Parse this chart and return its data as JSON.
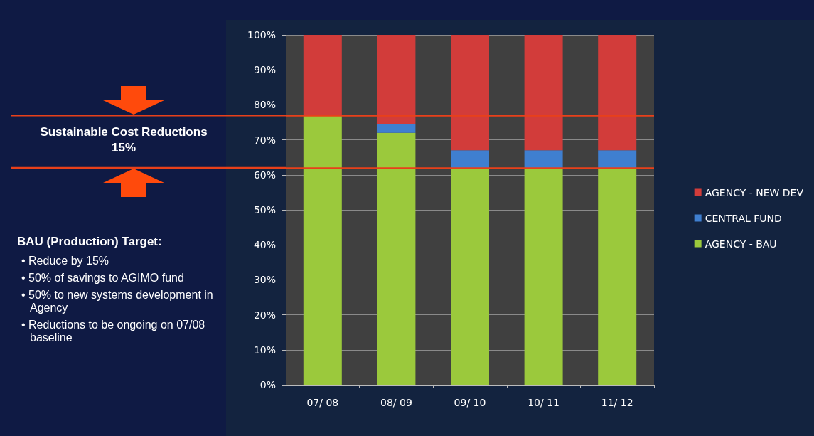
{
  "chart_data": {
    "type": "bar",
    "stacked": true,
    "categories": [
      "07/ 08",
      "08/ 09",
      "09/ 10",
      "10/ 11",
      "11/ 12"
    ],
    "series": [
      {
        "name": "AGENCY - BAU",
        "color": "#9bc93c",
        "values": [
          77,
          72,
          62,
          62,
          62
        ]
      },
      {
        "name": "CENTRAL FUND",
        "color": "#3f7fd0",
        "values": [
          0,
          2.5,
          5,
          5,
          5
        ]
      },
      {
        "name": "AGENCY - NEW DEV",
        "color": "#d23c3a",
        "values": [
          23,
          25.5,
          33,
          33,
          33
        ]
      }
    ],
    "ylim": [
      0,
      100
    ],
    "yticks": [
      {
        "value": 0,
        "label": "0%"
      },
      {
        "value": 10,
        "label": "10%"
      },
      {
        "value": 20,
        "label": "20%"
      },
      {
        "value": 30,
        "label": "30%"
      },
      {
        "value": 40,
        "label": "40%"
      },
      {
        "value": 50,
        "label": "50%"
      },
      {
        "value": 60,
        "label": "60%"
      },
      {
        "value": 70,
        "label": "70%"
      },
      {
        "value": 80,
        "label": "80%"
      },
      {
        "value": 90,
        "label": "90%"
      },
      {
        "value": 100,
        "label": "100%"
      }
    ],
    "grid": "y",
    "legend": "right",
    "ref_lines": [
      {
        "axis": "y",
        "value": 77,
        "color": "#e8401a"
      },
      {
        "axis": "y",
        "value": 62,
        "color": "#e8401a"
      }
    ],
    "annotations": [
      "Sustainable Cost Reductions\n15%",
      "BAU (Production) Target:",
      "• Reduce  by 15%",
      "• 50% of savings to  AGIMO fund",
      "• 50% to new systems development in Agency",
      "• Reductions to be ongoing on 07/08 baseline"
    ]
  }
}
